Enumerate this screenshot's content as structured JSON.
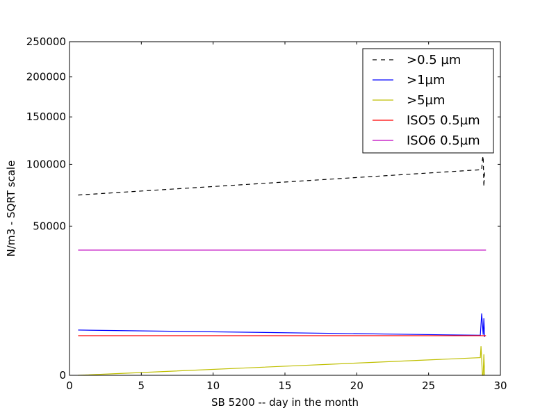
{
  "chart_data": {
    "type": "line",
    "xlabel": "SB 5200 -- day in the month",
    "ylabel": "N/m3 - SQRT scale",
    "y_scale": "sqrt",
    "xlim": [
      0,
      30
    ],
    "ylim": [
      0,
      250000
    ],
    "x_ticks": [
      0,
      5,
      10,
      15,
      20,
      25,
      30
    ],
    "y_ticks": [
      0,
      50000,
      100000,
      150000,
      200000,
      250000
    ],
    "grid": false,
    "legend_position": "top-right",
    "series": [
      {
        "name": ">0.5 µm",
        "color": "#000000",
        "style": "dashed",
        "points": [
          [
            0.6,
            73000
          ],
          [
            28.7,
            95000
          ],
          [
            28.75,
            105000
          ],
          [
            28.8,
            108000
          ],
          [
            28.85,
            80000
          ],
          [
            28.9,
            95000
          ]
        ]
      },
      {
        "name": ">1µm",
        "color": "#0000ff",
        "style": "solid",
        "points": [
          [
            0.6,
            4600
          ],
          [
            28.6,
            3600
          ],
          [
            28.7,
            8600
          ],
          [
            28.8,
            3700
          ],
          [
            28.85,
            7300
          ],
          [
            28.9,
            3300
          ]
        ]
      },
      {
        "name": ">5µm",
        "color": "#bfbf00",
        "style": "solid",
        "points": [
          [
            0.6,
            0
          ],
          [
            28.6,
            700
          ],
          [
            28.65,
            1900
          ],
          [
            28.75,
            0
          ],
          [
            28.8,
            0
          ],
          [
            28.85,
            1000
          ],
          [
            28.9,
            0
          ]
        ]
      },
      {
        "name": "ISO5 0.5µm",
        "color": "#ff0000",
        "style": "solid",
        "points": [
          [
            0.6,
            3520
          ],
          [
            29.0,
            3520
          ]
        ]
      },
      {
        "name": "ISO6 0.5µm",
        "color": "#bf00bf",
        "style": "solid",
        "points": [
          [
            0.6,
            35200
          ],
          [
            29.0,
            35200
          ]
        ]
      }
    ]
  }
}
